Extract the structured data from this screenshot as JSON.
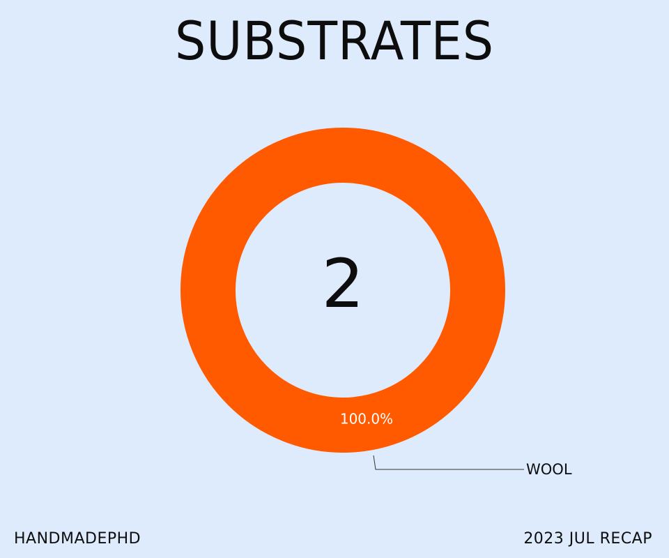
{
  "page": {
    "title": "SUBSTRATES",
    "center_value": "2",
    "footer_left": "HANDMADEPHD",
    "footer_right": "2023 JUL RECAP"
  },
  "colors": {
    "background": "#deebfc",
    "slice": "#ff5a00",
    "text": "#0d0d0d"
  },
  "chart_data": {
    "type": "pie",
    "style": "donut",
    "title": "SUBSTRATES",
    "center_text": "2",
    "slices": [
      {
        "label": "WOOL",
        "value": 100.0,
        "percent_label": "100.0%"
      }
    ]
  }
}
